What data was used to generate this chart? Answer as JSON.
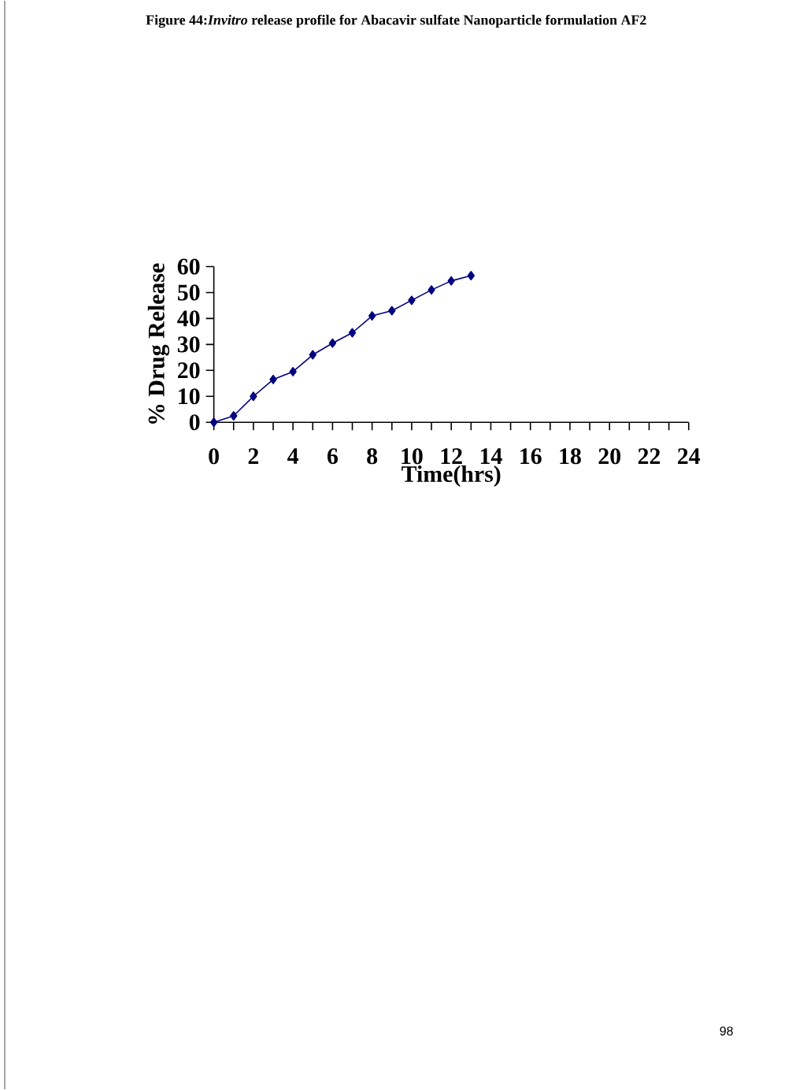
{
  "chart_data": {
    "type": "line",
    "title": "Figure 44:*Invitro* release profile for Abacavir sulfate Nanoparticle formulation AF2",
    "xlabel": "Time(hrs)",
    "ylabel": "% Drug Release",
    "x": [
      0,
      1,
      2,
      3,
      4,
      5,
      6,
      7,
      8,
      9,
      10,
      11,
      12,
      13
    ],
    "series": [
      {
        "color": "#000080",
        "values": [
          0,
          2.5,
          10,
          16.5,
          19.5,
          26,
          30.5,
          34.5,
          41,
          43,
          47,
          51,
          54.5,
          56.5
        ]
      }
    ],
    "xlim": [
      0,
      24
    ],
    "ylim": [
      0,
      60
    ],
    "xticks": [
      0,
      {
        "value": 1,
        "label": null
      },
      2,
      {
        "value": 3,
        "label": null
      },
      4,
      {
        "value": 5,
        "label": null
      },
      6,
      {
        "value": 7,
        "label": null
      },
      8,
      {
        "value": 9,
        "label": null
      },
      10,
      {
        "value": 11,
        "label": null
      },
      12,
      {
        "value": 13,
        "label": null
      },
      14,
      {
        "value": 15,
        "label": null
      },
      16,
      {
        "value": 17,
        "label": null
      },
      18,
      {
        "value": 19,
        "label": null
      },
      20,
      {
        "value": 21,
        "label": null
      },
      22,
      {
        "value": 23,
        "label": null
      },
      24
    ],
    "yticks": [
      0,
      10,
      20,
      30,
      40,
      50,
      60
    ],
    "marker": "diamond",
    "line_style": "solid",
    "grid": false,
    "annotations": [
      "98"
    ]
  }
}
